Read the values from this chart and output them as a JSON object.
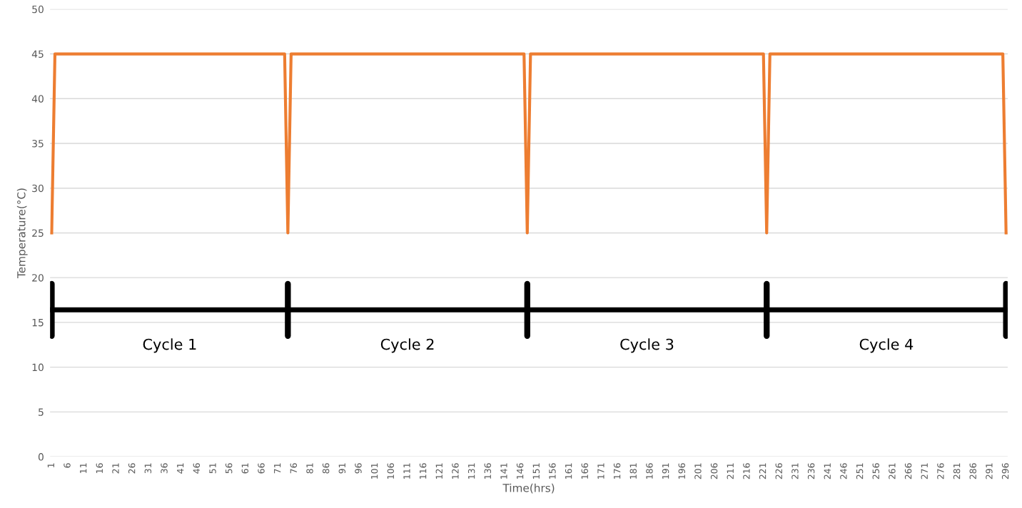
{
  "chart_data": {
    "type": "line",
    "xlabel": "Time(hrs)",
    "ylabel": "Temperature(°C)",
    "series": [
      {
        "color": "#ed7d31",
        "x": [
          1,
          2,
          73,
          74,
          75,
          147,
          148,
          149,
          221,
          222,
          223,
          295,
          296
        ],
        "values": [
          25,
          45,
          45,
          25,
          45,
          45,
          25,
          45,
          45,
          25,
          45,
          45,
          25
        ]
      }
    ],
    "xlim": [
      0.5,
      296.5
    ],
    "xticks": [
      1,
      6,
      11,
      16,
      21,
      26,
      31,
      36,
      41,
      46,
      51,
      56,
      61,
      66,
      71,
      76,
      81,
      86,
      91,
      96,
      101,
      106,
      111,
      116,
      121,
      126,
      131,
      136,
      141,
      146,
      151,
      156,
      161,
      166,
      171,
      176,
      181,
      186,
      191,
      196,
      201,
      206,
      211,
      216,
      221,
      226,
      231,
      236,
      241,
      246,
      251,
      256,
      261,
      266,
      271,
      276,
      281,
      286,
      291,
      296
    ],
    "ylim": [
      0,
      50
    ],
    "yticks": [
      0,
      5,
      10,
      15,
      20,
      25,
      30,
      35,
      40,
      45,
      50
    ],
    "grid": "y",
    "marker": "none",
    "line_style": "solid",
    "ref_lines": [
      {
        "axis": "y",
        "value": 16.4,
        "color": "#000000"
      }
    ],
    "annotations": [
      "Cycle 1",
      "Cycle 2",
      "Cycle 3",
      "Cycle 4"
    ]
  }
}
